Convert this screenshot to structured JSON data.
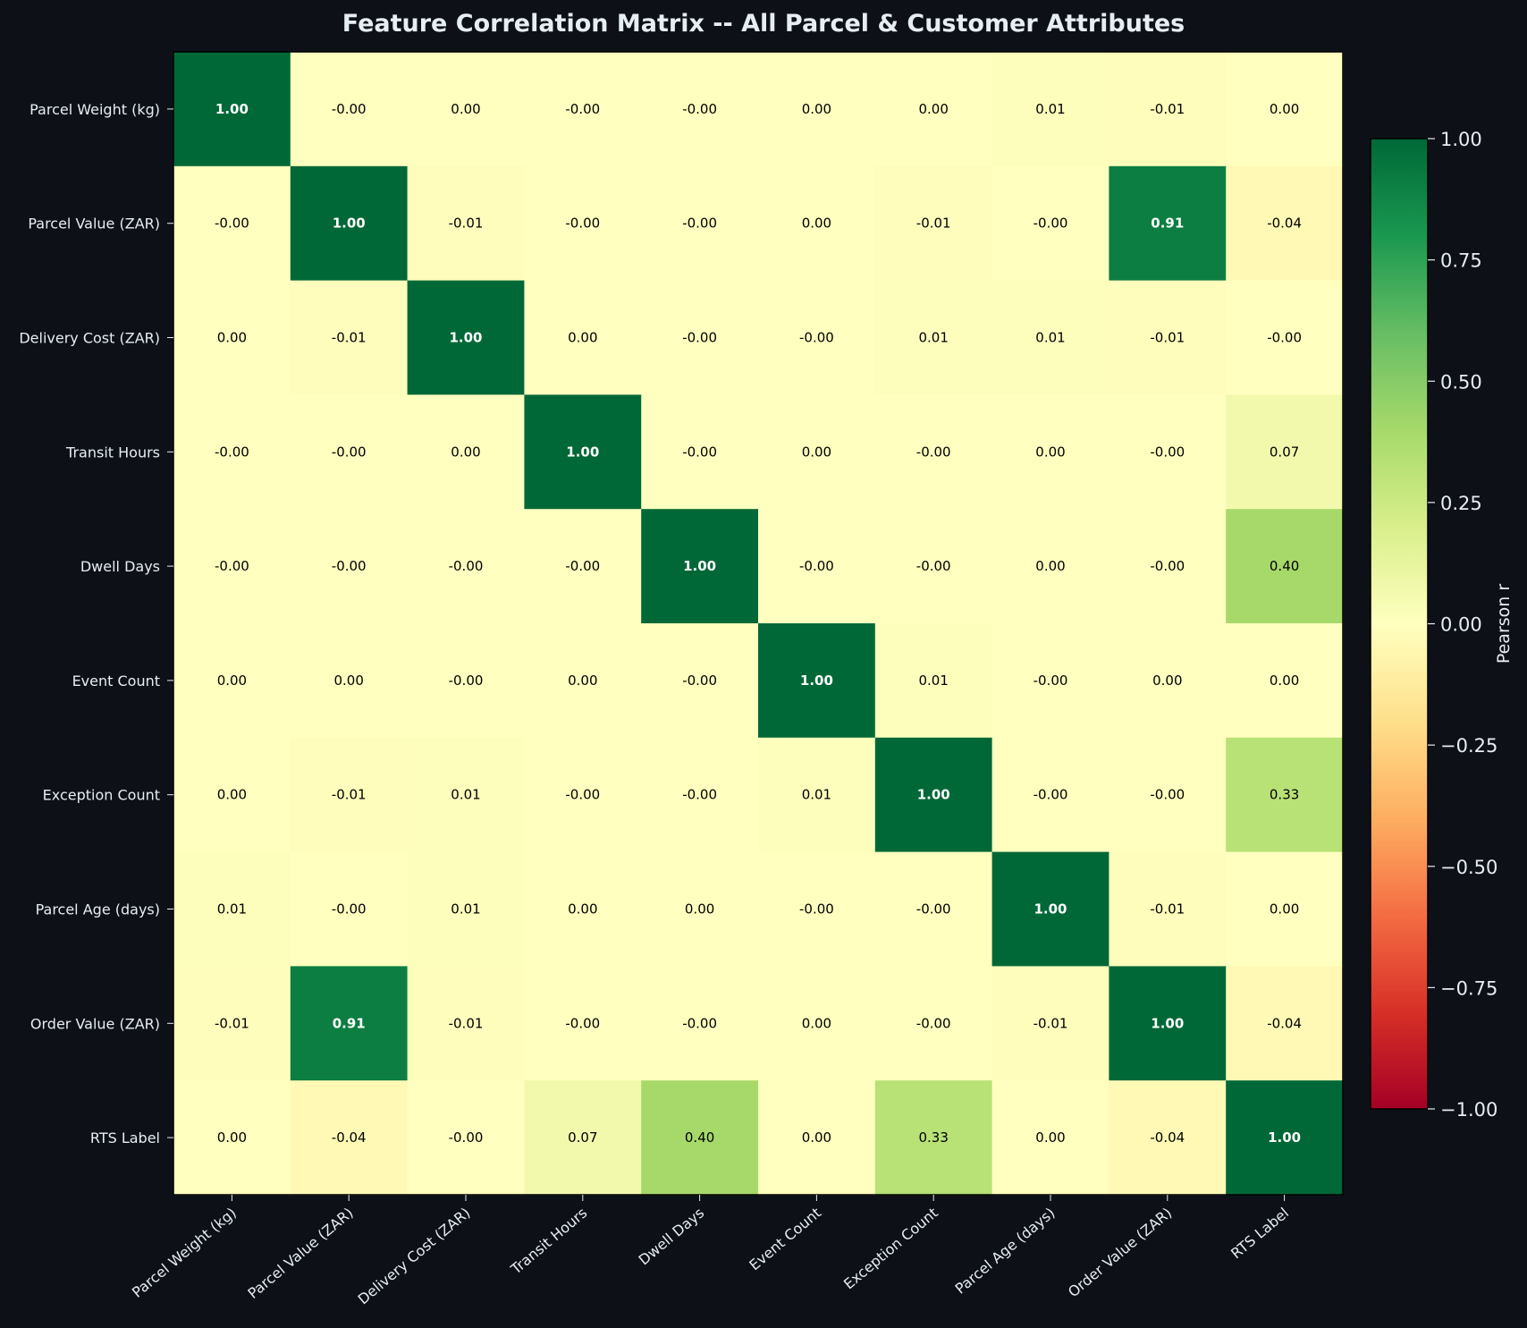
{
  "chart_data": {
    "type": "heatmap",
    "title": "Feature Correlation Matrix -- All Parcel & Customer Attributes",
    "rows": [
      "Parcel Weight (kg)",
      "Parcel Value (ZAR)",
      "Delivery Cost (ZAR)",
      "Transit Hours",
      "Dwell Days",
      "Event Count",
      "Exception Count",
      "Parcel Age (days)",
      "Order Value (ZAR)",
      "RTS Label"
    ],
    "columns": [
      "Parcel Weight (kg)",
      "Parcel Value (ZAR)",
      "Delivery Cost (ZAR)",
      "Transit Hours",
      "Dwell Days",
      "Event Count",
      "Exception Count",
      "Parcel Age (days)",
      "Order Value (ZAR)",
      "RTS Label"
    ],
    "values": [
      [
        1.0,
        -0.0,
        0.0,
        -0.0,
        -0.0,
        0.0,
        0.0,
        0.01,
        -0.01,
        0.0
      ],
      [
        -0.0,
        1.0,
        -0.01,
        -0.0,
        -0.0,
        0.0,
        -0.01,
        -0.0,
        0.91,
        -0.04
      ],
      [
        0.0,
        -0.01,
        1.0,
        0.0,
        -0.0,
        -0.0,
        0.01,
        0.01,
        -0.01,
        -0.0
      ],
      [
        -0.0,
        -0.0,
        0.0,
        1.0,
        -0.0,
        0.0,
        -0.0,
        0.0,
        -0.0,
        0.07
      ],
      [
        -0.0,
        -0.0,
        -0.0,
        -0.0,
        1.0,
        -0.0,
        -0.0,
        0.0,
        -0.0,
        0.4
      ],
      [
        0.0,
        0.0,
        -0.0,
        0.0,
        -0.0,
        1.0,
        0.01,
        -0.0,
        0.0,
        0.0
      ],
      [
        0.0,
        -0.01,
        0.01,
        -0.0,
        -0.0,
        0.01,
        1.0,
        -0.0,
        -0.0,
        0.33
      ],
      [
        0.01,
        -0.0,
        0.01,
        0.0,
        0.0,
        -0.0,
        -0.0,
        1.0,
        -0.01,
        0.0
      ],
      [
        -0.01,
        0.91,
        -0.01,
        -0.0,
        -0.0,
        0.0,
        -0.0,
        -0.01,
        1.0,
        -0.04
      ],
      [
        0.0,
        -0.04,
        -0.0,
        0.07,
        0.4,
        0.0,
        0.33,
        0.0,
        -0.04,
        1.0
      ]
    ],
    "labels": [
      [
        "1.00",
        "-0.00",
        "0.00",
        "-0.00",
        "-0.00",
        "0.00",
        "0.00",
        "0.01",
        "-0.01",
        "0.00"
      ],
      [
        "-0.00",
        "1.00",
        "-0.01",
        "-0.00",
        "-0.00",
        "0.00",
        "-0.01",
        "-0.00",
        "0.91",
        "-0.04"
      ],
      [
        "0.00",
        "-0.01",
        "1.00",
        "0.00",
        "-0.00",
        "-0.00",
        "0.01",
        "0.01",
        "-0.01",
        "-0.00"
      ],
      [
        "-0.00",
        "-0.00",
        "0.00",
        "1.00",
        "-0.00",
        "0.00",
        "-0.00",
        "0.00",
        "-0.00",
        "0.07"
      ],
      [
        "-0.00",
        "-0.00",
        "-0.00",
        "-0.00",
        "1.00",
        "-0.00",
        "-0.00",
        "0.00",
        "-0.00",
        "0.40"
      ],
      [
        "0.00",
        "0.00",
        "-0.00",
        "0.00",
        "-0.00",
        "1.00",
        "0.01",
        "-0.00",
        "0.00",
        "0.00"
      ],
      [
        "0.00",
        "-0.01",
        "0.01",
        "-0.00",
        "-0.00",
        "0.01",
        "1.00",
        "-0.00",
        "-0.00",
        "0.33"
      ],
      [
        "0.01",
        "-0.00",
        "0.01",
        "0.00",
        "0.00",
        "-0.00",
        "-0.00",
        "1.00",
        "-0.01",
        "0.00"
      ],
      [
        "-0.01",
        "0.91",
        "-0.01",
        "-0.00",
        "-0.00",
        "0.00",
        "-0.00",
        "-0.01",
        "1.00",
        "-0.04"
      ],
      [
        "0.00",
        "-0.04",
        "-0.00",
        "0.07",
        "0.40",
        "0.00",
        "0.33",
        "0.00",
        "-0.04",
        "1.00"
      ]
    ],
    "colorbar": {
      "label": "Pearson r",
      "range": [
        -1,
        1
      ],
      "ticks": [
        "1.00",
        "0.75",
        "0.50",
        "0.25",
        "0.00",
        "−0.25",
        "−0.50",
        "−0.75",
        "−1.00"
      ],
      "tick_values": [
        1.0,
        0.75,
        0.5,
        0.25,
        0.0,
        -0.25,
        -0.5,
        -0.75,
        -1.0
      ],
      "colormap": "RdYlGn"
    },
    "colors": {
      "background": "#0d1117",
      "text": "#e6edf3",
      "frame": "#000000"
    }
  }
}
